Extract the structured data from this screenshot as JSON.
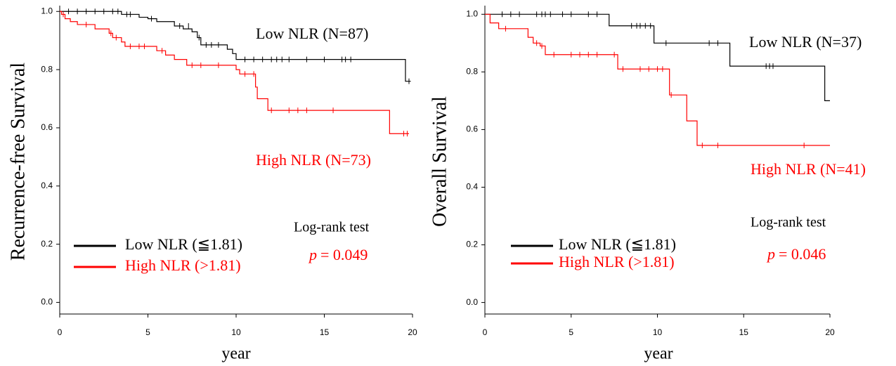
{
  "chart_data": [
    {
      "type": "step",
      "xlabel": "year",
      "ylabel": "Recurrence-free Survival",
      "xlim": [
        0,
        20
      ],
      "ylim": [
        -0.04,
        1.02
      ],
      "xticks": [
        0,
        5,
        10,
        15,
        20
      ],
      "yticks": [
        {
          "value": 0,
          "label": "0.0"
        },
        0.2,
        0.4,
        0.6,
        0.8,
        {
          "value": 1,
          "label": "1.0"
        }
      ],
      "series": [
        {
          "name": "Low NLR (≦1.81)",
          "color": "#000000",
          "x": [
            0,
            3.5,
            4.5,
            5,
            5.5,
            6.5,
            7,
            7.5,
            7.8,
            8,
            9.5,
            9.8,
            10,
            19.6,
            19.9
          ],
          "values": [
            1,
            0.99,
            0.98,
            0.975,
            0.965,
            0.95,
            0.94,
            0.93,
            0.91,
            0.885,
            0.87,
            0.855,
            0.835,
            0.76,
            0.76
          ],
          "censored_x": [
            0.5,
            1,
            1.5,
            2,
            2.5,
            3,
            3.3,
            3.8,
            4,
            5.2,
            6.8,
            7.3,
            7.9,
            8.3,
            8.6,
            9,
            10.5,
            11,
            11.5,
            12,
            12.3,
            12.6,
            13,
            14,
            15,
            16,
            16.2,
            16.5,
            19.8
          ],
          "censored_values": [
            1,
            1,
            1,
            1,
            1,
            1,
            1,
            0.99,
            0.99,
            0.975,
            0.95,
            0.95,
            0.91,
            0.885,
            0.885,
            0.885,
            0.835,
            0.835,
            0.835,
            0.835,
            0.835,
            0.835,
            0.835,
            0.835,
            0.835,
            0.835,
            0.835,
            0.835,
            0.76
          ]
        },
        {
          "name": "High NLR (>1.81)",
          "color": "#ff0000",
          "x": [
            0,
            0.1,
            0.3,
            0.6,
            1,
            2,
            2.8,
            3,
            3.5,
            3.7,
            5.5,
            6,
            6.5,
            7.2,
            10,
            10.2,
            11.1,
            11.2,
            11.8,
            18.7,
            19.8
          ],
          "values": [
            1,
            0.99,
            0.975,
            0.965,
            0.955,
            0.94,
            0.925,
            0.91,
            0.895,
            0.88,
            0.865,
            0.85,
            0.835,
            0.815,
            0.8,
            0.785,
            0.74,
            0.7,
            0.66,
            0.58,
            0.58
          ],
          "censored_x": [
            0.2,
            1.5,
            2.9,
            3.2,
            4,
            4.5,
            4.8,
            5.8,
            7.5,
            8,
            9,
            10.5,
            11,
            12,
            13,
            13.5,
            14,
            15.5,
            19.5,
            19.7
          ],
          "censored_values": [
            0.99,
            0.955,
            0.925,
            0.91,
            0.88,
            0.88,
            0.88,
            0.865,
            0.815,
            0.815,
            0.815,
            0.785,
            0.785,
            0.66,
            0.66,
            0.66,
            0.66,
            0.66,
            0.58,
            0.58
          ]
        }
      ],
      "annotations": [
        {
          "text": "Low NLR (N=87)",
          "color": "#000000"
        },
        {
          "text": "High NLR (N=73)",
          "color": "#ff0000"
        },
        {
          "text": "Log-rank test",
          "color": "#000000"
        },
        {
          "text": "p",
          "color": "#ff0000",
          "italic": true
        },
        {
          "text": "= 0.049",
          "color": "#ff0000"
        }
      ]
    },
    {
      "type": "step",
      "xlabel": "year",
      "ylabel": "Overall Survival",
      "xlim": [
        0,
        20
      ],
      "ylim": [
        -0.04,
        1.03
      ],
      "xticks": [
        0,
        5,
        10,
        15,
        20
      ],
      "yticks": [
        {
          "value": 0,
          "label": "0.0"
        },
        0.2,
        0.4,
        0.6,
        0.8,
        {
          "value": 1,
          "label": "1.0"
        }
      ],
      "series": [
        {
          "name": "Low NLR (≦1.81)",
          "color": "#000000",
          "x": [
            0,
            7.2,
            9.8,
            14.2,
            19.7,
            20
          ],
          "values": [
            1,
            0.96,
            0.9,
            0.82,
            0.7,
            0.7
          ],
          "censored_x": [
            1,
            1.5,
            2,
            3,
            3.3,
            3.5,
            3.8,
            4.5,
            5,
            6,
            6.5,
            8.5,
            8.8,
            9,
            9.3,
            9.6,
            10.5,
            13,
            13.5,
            16.3,
            16.5,
            16.7
          ],
          "censored_values": [
            1,
            1,
            1,
            1,
            1,
            1,
            1,
            1,
            1,
            1,
            1,
            0.96,
            0.96,
            0.96,
            0.96,
            0.96,
            0.9,
            0.9,
            0.9,
            0.82,
            0.82,
            0.82
          ]
        },
        {
          "name": "High NLR (>1.81)",
          "color": "#ff0000",
          "x": [
            0,
            0.3,
            0.8,
            2.5,
            2.8,
            3.2,
            3.5,
            7.7,
            10.7,
            11.7,
            12.3,
            20
          ],
          "values": [
            1,
            0.97,
            0.95,
            0.92,
            0.9,
            0.89,
            0.86,
            0.81,
            0.72,
            0.63,
            0.545,
            0.545
          ],
          "censored_x": [
            1.2,
            3,
            3.3,
            4,
            5,
            5.5,
            6,
            6.5,
            7.5,
            8,
            9,
            9.5,
            10,
            10.3,
            10.8,
            12.6,
            13.5,
            18.5
          ],
          "censored_values": [
            0.95,
            0.9,
            0.89,
            0.86,
            0.86,
            0.86,
            0.86,
            0.86,
            0.86,
            0.81,
            0.81,
            0.81,
            0.81,
            0.81,
            0.72,
            0.545,
            0.545,
            0.545
          ]
        }
      ],
      "annotations": [
        {
          "text": "Low NLR (N=37)",
          "color": "#000000"
        },
        {
          "text": "High NLR (N=41)",
          "color": "#ff0000"
        },
        {
          "text": "Log-rank test",
          "color": "#000000"
        },
        {
          "text": "p",
          "color": "#ff0000",
          "italic": true
        },
        {
          "text": "= 0.046",
          "color": "#ff0000"
        }
      ]
    }
  ]
}
